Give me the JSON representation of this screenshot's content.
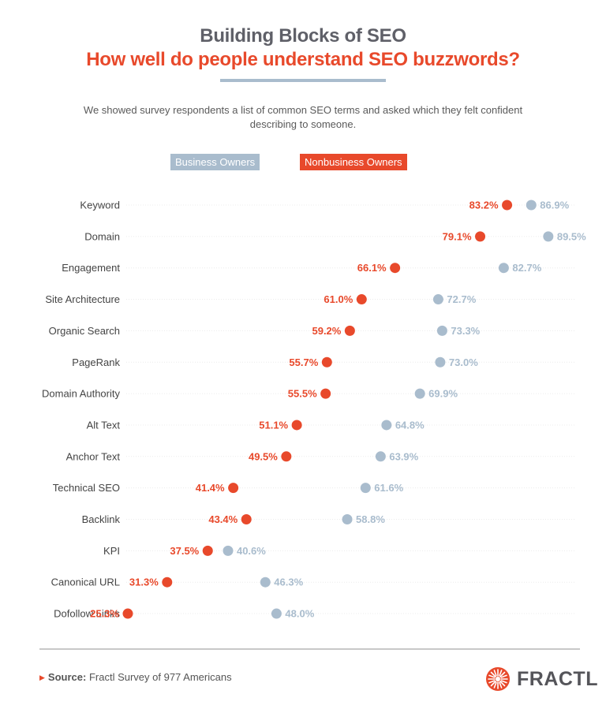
{
  "header": {
    "title": "Building Blocks of SEO",
    "subtitle": "How well do people understand SEO buzzwords?",
    "description": "We showed survey respondents a list of common SEO terms and asked which they felt confident describing to someone."
  },
  "legend": {
    "business": "Business Owners",
    "nonbusiness": "Nonbusiness Owners"
  },
  "colors": {
    "business": "#a9bccd",
    "nonbusiness": "#e8492b",
    "title": "#5f6068",
    "accent": "#e8492b"
  },
  "chart_data": {
    "type": "scatter",
    "subtype": "dot-plot",
    "categories": [
      "Keyword",
      "Domain",
      "Engagement",
      "Site Architecture",
      "Organic Search",
      "PageRank",
      "Domain Authority",
      "Alt Text",
      "Anchor Text",
      "Technical SEO",
      "Backlink",
      "KPI",
      "Canonical URL",
      "Dofollow Links"
    ],
    "series": [
      {
        "name": "Business Owners",
        "values": [
          86.9,
          89.5,
          82.7,
          72.7,
          73.3,
          73.0,
          69.9,
          64.8,
          63.9,
          61.6,
          58.8,
          40.6,
          46.3,
          48.0
        ],
        "labels": [
          "86.9%",
          "89.5%",
          "82.7%",
          "72.7%",
          "73.3%",
          "73.0%",
          "69.9%",
          "64.8%",
          "63.9%",
          "61.6%",
          "58.8%",
          "40.6%",
          "46.3%",
          "48.0%"
        ]
      },
      {
        "name": "Nonbusiness Owners",
        "values": [
          83.2,
          79.1,
          66.1,
          61.0,
          59.2,
          55.7,
          55.5,
          51.1,
          49.5,
          41.4,
          43.4,
          37.5,
          31.3,
          25.3
        ],
        "labels": [
          "83.2%",
          "79.1%",
          "66.1%",
          "61.0%",
          "59.2%",
          "55.7%",
          "55.5%",
          "51.1%",
          "49.5%",
          "41.4%",
          "43.4%",
          "37.5%",
          "31.3%",
          "25.3%"
        ]
      }
    ],
    "grid": true,
    "legend_position": "top"
  },
  "footer": {
    "source_label": "Source:",
    "source_text": "Fractl Survey of 977 Americans",
    "logo_text": "FRACTL",
    "logo_icon": "starburst-icon"
  }
}
